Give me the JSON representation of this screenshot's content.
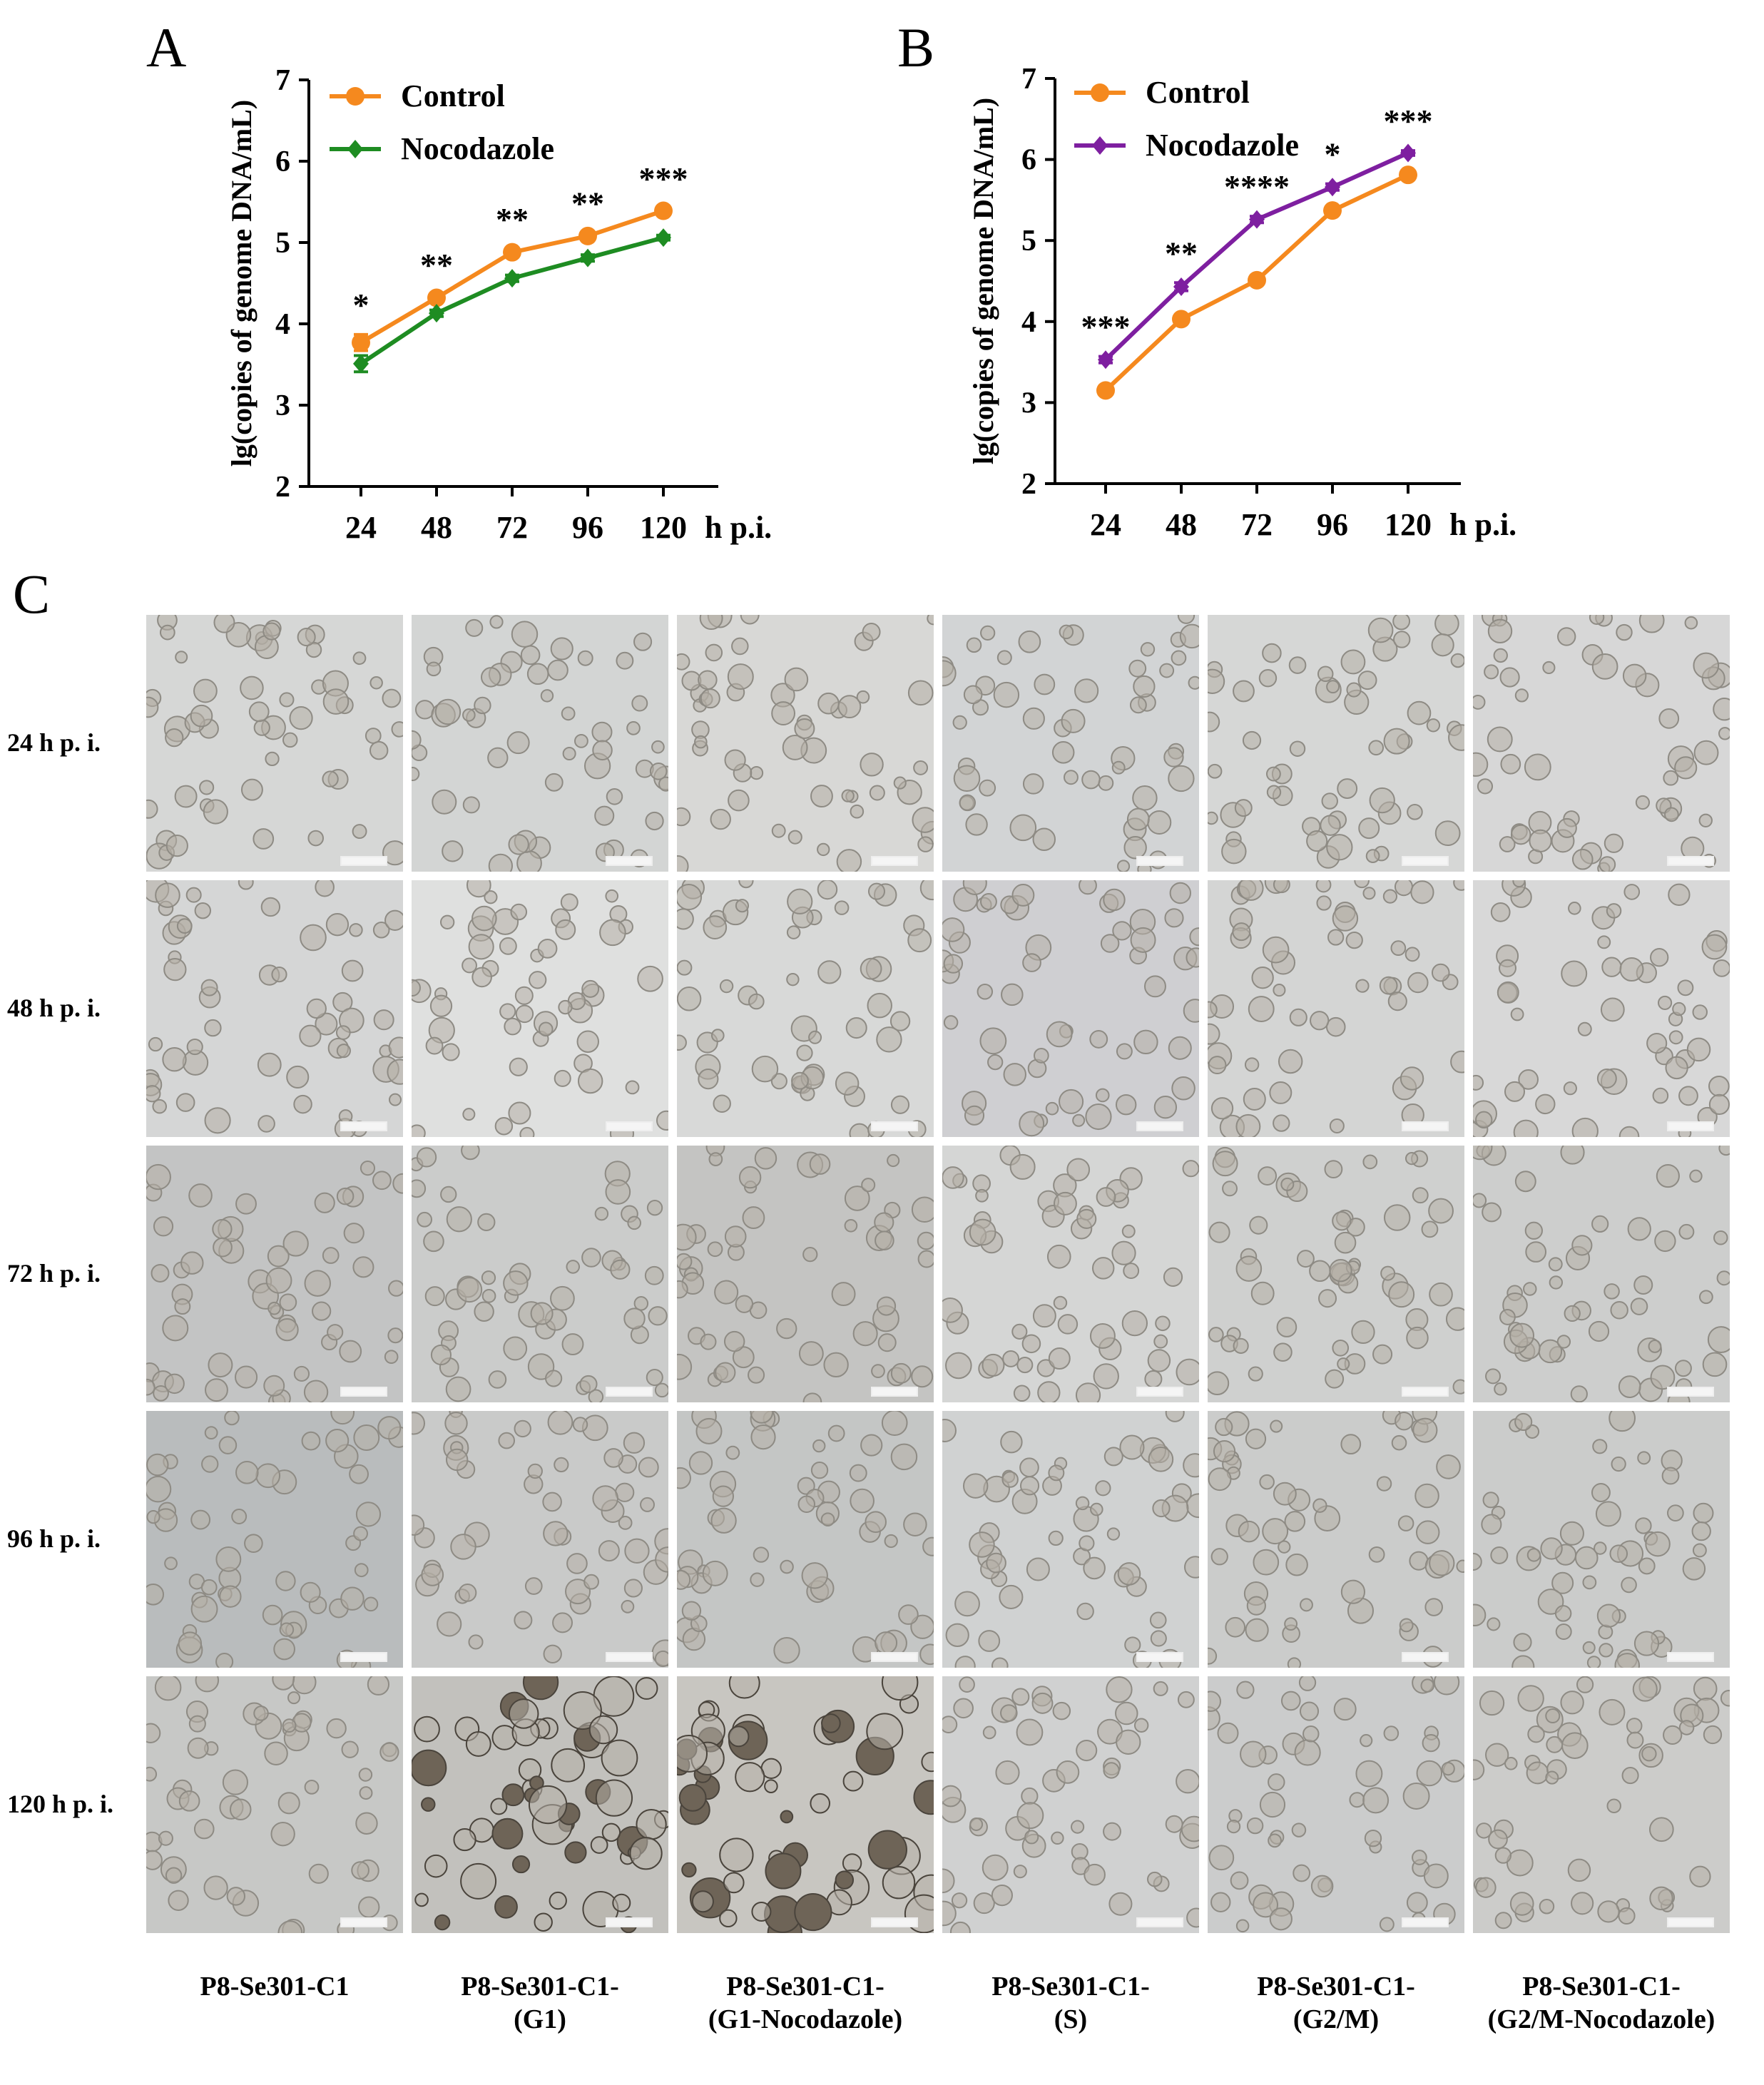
{
  "panels": {
    "a": "A",
    "b": "B",
    "c": "C"
  },
  "chart_data": [
    {
      "type": "line",
      "id": "A",
      "ylabel": "lg(copies of genome DNA/mL)",
      "xlabel": "h p.i.",
      "categories": [
        "24",
        "48",
        "72",
        "96",
        "120"
      ],
      "ylim": [
        2,
        7
      ],
      "yticks": [
        "2",
        "3",
        "4",
        "5",
        "6",
        "7"
      ],
      "legend_position": "top-left",
      "series": [
        {
          "name": "Control",
          "color": "#F5891E",
          "marker": "circle",
          "values": [
            3.77,
            4.32,
            4.88,
            5.08,
            5.39
          ],
          "errors": [
            0.1,
            0.04,
            0.04,
            0.04,
            0.03
          ]
        },
        {
          "name": "Nocodazole",
          "color": "#1E8C22",
          "marker": "diamond",
          "values": [
            3.51,
            4.13,
            4.56,
            4.81,
            5.06
          ],
          "errors": [
            0.1,
            0.04,
            0.04,
            0.04,
            0.03
          ]
        }
      ],
      "significance": [
        "*",
        "**",
        "**",
        "**",
        "***"
      ]
    },
    {
      "type": "line",
      "id": "B",
      "ylabel": "lg(copies of genome DNA/mL)",
      "xlabel": "h p.i.",
      "categories": [
        "24",
        "48",
        "72",
        "96",
        "120"
      ],
      "ylim": [
        2,
        7
      ],
      "yticks": [
        "2",
        "3",
        "4",
        "5",
        "6",
        "7"
      ],
      "legend_position": "top-left",
      "series": [
        {
          "name": "Control",
          "color": "#F5891E",
          "marker": "circle",
          "values": [
            3.15,
            4.03,
            4.51,
            5.37,
            5.81
          ],
          "errors": [
            0.03,
            0.03,
            0.03,
            0.03,
            0.03
          ]
        },
        {
          "name": "Nocodazole",
          "color": "#7E1FA0",
          "marker": "diamond",
          "values": [
            3.53,
            4.43,
            5.26,
            5.66,
            6.08
          ],
          "errors": [
            0.04,
            0.05,
            0.04,
            0.04,
            0.03
          ]
        }
      ],
      "significance": [
        "***",
        "**",
        "****",
        "*",
        "***"
      ]
    }
  ],
  "micrographs": {
    "rows": [
      "24 h p. i.",
      "48 h p. i.",
      "72 h p. i.",
      "96 h p. i.",
      "120 h p. i."
    ],
    "columns": [
      [
        "P8-Se301-C1",
        ""
      ],
      [
        "P8-Se301-C1-",
        "(G1)"
      ],
      [
        "P8-Se301-C1-",
        "(G1-Nocodazole)"
      ],
      [
        "P8-Se301-C1-",
        "(S)"
      ],
      [
        "P8-Se301-C1-",
        "(G2/M)"
      ],
      [
        "P8-Se301-C1-",
        "(G2/M-Nocodazole)"
      ]
    ]
  }
}
